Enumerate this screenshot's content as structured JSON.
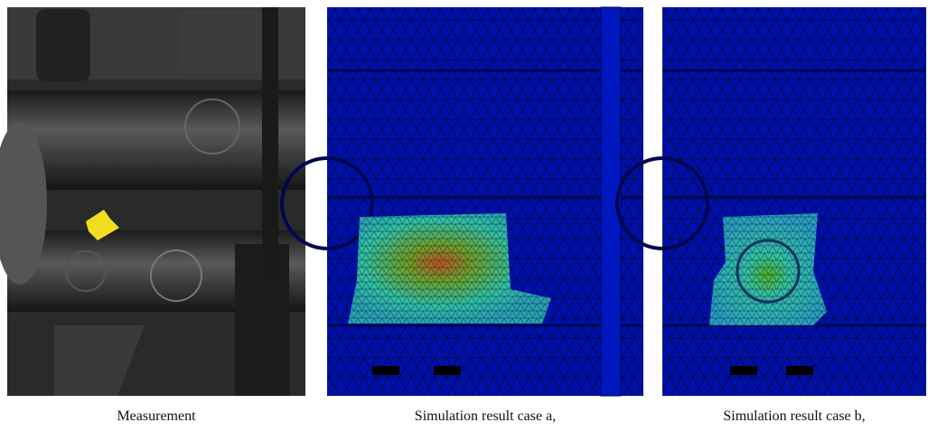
{
  "panels": [
    {
      "caption": "Measurement"
    },
    {
      "caption": "Simulation result case a,"
    },
    {
      "caption": "Simulation result case b,"
    }
  ]
}
